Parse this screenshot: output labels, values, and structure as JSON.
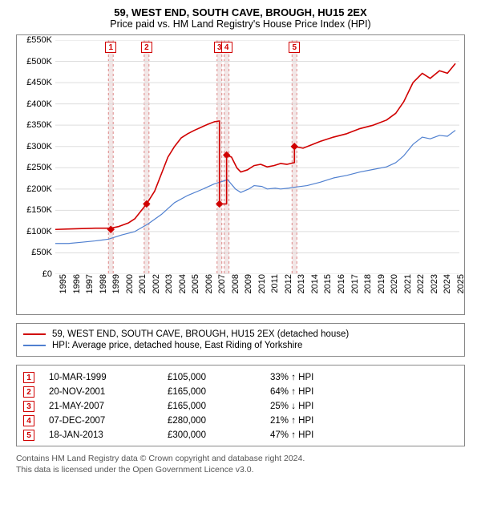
{
  "title_line1": "59, WEST END, SOUTH CAVE, BROUGH, HU15 2EX",
  "title_line2": "Price paid vs. HM Land Registry's House Price Index (HPI)",
  "chart": {
    "type": "line",
    "background_color": "#ffffff",
    "border_color": "#888888",
    "xlim": [
      1995,
      2025.5
    ],
    "ylim": [
      0,
      550000
    ],
    "ytick_step": 50000,
    "xtick_step": 1,
    "ytick_labels": [
      "£0",
      "£50K",
      "£100K",
      "£150K",
      "£200K",
      "£250K",
      "£300K",
      "£350K",
      "£400K",
      "£450K",
      "£500K",
      "£550K"
    ],
    "xtick_labels": [
      "1995",
      "1996",
      "1997",
      "1998",
      "1999",
      "2000",
      "2001",
      "2002",
      "2003",
      "2004",
      "2005",
      "2006",
      "2007",
      "2008",
      "2009",
      "2010",
      "2011",
      "2012",
      "2013",
      "2014",
      "2015",
      "2016",
      "2017",
      "2018",
      "2019",
      "2020",
      "2021",
      "2022",
      "2023",
      "2024",
      "2025"
    ],
    "grid_color": "#dddddd",
    "red_series": {
      "color": "#d00000",
      "width": 1.6,
      "points": [
        [
          1995,
          105000
        ],
        [
          1996,
          106000
        ],
        [
          1997,
          107000
        ],
        [
          1998,
          108000
        ],
        [
          1999.2,
          108000
        ],
        [
          1999.8,
          112000
        ],
        [
          2000.5,
          120000
        ],
        [
          2001,
          130000
        ],
        [
          2001.89,
          165000
        ],
        [
          2002.5,
          195000
        ],
        [
          2003,
          235000
        ],
        [
          2003.5,
          275000
        ],
        [
          2004,
          300000
        ],
        [
          2004.5,
          320000
        ],
        [
          2005,
          330000
        ],
        [
          2005.5,
          338000
        ],
        [
          2006,
          345000
        ],
        [
          2006.5,
          352000
        ],
        [
          2007,
          358000
        ],
        [
          2007.39,
          360000
        ],
        [
          2007.39,
          165000
        ],
        [
          2007.93,
          165000
        ],
        [
          2007.93,
          280000
        ],
        [
          2008.3,
          275000
        ],
        [
          2008.7,
          250000
        ],
        [
          2009,
          240000
        ],
        [
          2009.5,
          245000
        ],
        [
          2010,
          255000
        ],
        [
          2010.5,
          258000
        ],
        [
          2011,
          252000
        ],
        [
          2011.5,
          255000
        ],
        [
          2012,
          260000
        ],
        [
          2012.5,
          258000
        ],
        [
          2013.05,
          262000
        ],
        [
          2013.05,
          300000
        ],
        [
          2013.7,
          296000
        ],
        [
          2014.2,
          302000
        ],
        [
          2015,
          312000
        ],
        [
          2016,
          322000
        ],
        [
          2017,
          330000
        ],
        [
          2018,
          342000
        ],
        [
          2019,
          350000
        ],
        [
          2020,
          362000
        ],
        [
          2020.7,
          378000
        ],
        [
          2021.3,
          405000
        ],
        [
          2022,
          450000
        ],
        [
          2022.7,
          472000
        ],
        [
          2023.3,
          460000
        ],
        [
          2024,
          478000
        ],
        [
          2024.6,
          472000
        ],
        [
          2025.2,
          495000
        ]
      ],
      "sale_points": [
        {
          "x": 1999.19,
          "y": 105000
        },
        {
          "x": 2001.89,
          "y": 165000
        },
        {
          "x": 2007.39,
          "y": 165000
        },
        {
          "x": 2007.93,
          "y": 280000
        },
        {
          "x": 2013.05,
          "y": 300000
        }
      ]
    },
    "blue_series": {
      "color": "#5080d0",
      "width": 1.2,
      "points": [
        [
          1995,
          72000
        ],
        [
          1996,
          72000
        ],
        [
          1997,
          75000
        ],
        [
          1998,
          78000
        ],
        [
          1999,
          82000
        ],
        [
          2000,
          92000
        ],
        [
          2001,
          100000
        ],
        [
          2002,
          118000
        ],
        [
          2003,
          140000
        ],
        [
          2004,
          168000
        ],
        [
          2005,
          185000
        ],
        [
          2006,
          198000
        ],
        [
          2007,
          212000
        ],
        [
          2007.6,
          218000
        ],
        [
          2008,
          222000
        ],
        [
          2008.6,
          200000
        ],
        [
          2009,
          192000
        ],
        [
          2009.6,
          200000
        ],
        [
          2010,
          208000
        ],
        [
          2010.6,
          206000
        ],
        [
          2011,
          200000
        ],
        [
          2011.6,
          202000
        ],
        [
          2012,
          200000
        ],
        [
          2012.6,
          202000
        ],
        [
          2013,
          204000
        ],
        [
          2014,
          208000
        ],
        [
          2015,
          216000
        ],
        [
          2016,
          226000
        ],
        [
          2017,
          232000
        ],
        [
          2018,
          240000
        ],
        [
          2019,
          246000
        ],
        [
          2020,
          252000
        ],
        [
          2020.7,
          262000
        ],
        [
          2021.3,
          278000
        ],
        [
          2022,
          305000
        ],
        [
          2022.7,
          322000
        ],
        [
          2023.3,
          318000
        ],
        [
          2024,
          326000
        ],
        [
          2024.6,
          324000
        ],
        [
          2025.2,
          338000
        ]
      ]
    },
    "marker_bands": [
      {
        "label": "1",
        "x": 1999.19
      },
      {
        "label": "2",
        "x": 2001.89
      },
      {
        "label": "3",
        "x": 2007.39
      },
      {
        "label": "4",
        "x": 2007.93
      },
      {
        "label": "5",
        "x": 2013.05
      }
    ],
    "band_color": "#f2e6e6",
    "band_dash_color": "#d88"
  },
  "legend": {
    "items": [
      {
        "color": "#d00000",
        "label": "59, WEST END, SOUTH CAVE, BROUGH, HU15 2EX (detached house)"
      },
      {
        "color": "#5080d0",
        "label": "HPI: Average price, detached house, East Riding of Yorkshire"
      }
    ]
  },
  "sales": [
    {
      "num": "1",
      "date": "10-MAR-1999",
      "price": "£105,000",
      "diff": "33% ↑ HPI"
    },
    {
      "num": "2",
      "date": "20-NOV-2001",
      "price": "£165,000",
      "diff": "64% ↑ HPI"
    },
    {
      "num": "3",
      "date": "21-MAY-2007",
      "price": "£165,000",
      "diff": "25% ↓ HPI"
    },
    {
      "num": "4",
      "date": "07-DEC-2007",
      "price": "£280,000",
      "diff": "21% ↑ HPI"
    },
    {
      "num": "5",
      "date": "18-JAN-2013",
      "price": "£300,000",
      "diff": "47% ↑ HPI"
    }
  ],
  "footer_line1": "Contains HM Land Registry data © Crown copyright and database right 2024.",
  "footer_line2": "This data is licensed under the Open Government Licence v3.0."
}
